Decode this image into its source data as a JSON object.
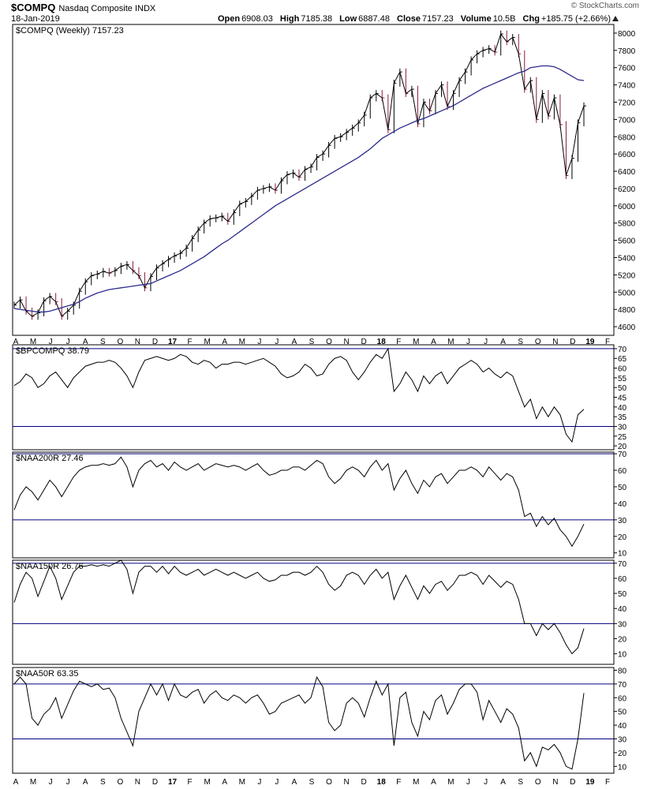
{
  "header": {
    "symbol": "$COMPQ",
    "name": "Nasdaq Composite INDX",
    "date": "18-Jan-2019",
    "credit": "© StockCharts.com",
    "quote": {
      "open_label": "Open",
      "open": "6908.03",
      "high_label": "High",
      "high": "7185.38",
      "low_label": "Low",
      "low": "6887.48",
      "close_label": "Close",
      "close": "7157.23",
      "volume_label": "Volume",
      "volume": "10.5B",
      "chg_label": "Chg",
      "chg": "+185.75 (+2.66%)"
    }
  },
  "colors": {
    "line": "#000000",
    "ma": "#2b2b8c",
    "down_bar": "#8b1a3a",
    "up_bar": "#000000",
    "grid": "#000080"
  },
  "chart_data": [
    {
      "type": "line",
      "id": "price",
      "legend": "$COMPQ (Weekly) 7157.23",
      "ylim": [
        4500,
        8100
      ],
      "yticks": [
        4600,
        4800,
        5000,
        5200,
        5400,
        5600,
        5800,
        6000,
        6200,
        6400,
        6600,
        6800,
        7000,
        7200,
        7400,
        7600,
        7800,
        8000
      ],
      "x_labels": [
        "A",
        "M",
        "J",
        "J",
        "A",
        "S",
        "O",
        "N",
        "D",
        "17",
        "F",
        "M",
        "A",
        "M",
        "J",
        "J",
        "A",
        "S",
        "O",
        "N",
        "D",
        "18",
        "F",
        "M",
        "A",
        "M",
        "J",
        "J",
        "A",
        "S",
        "O",
        "N",
        "D",
        "19",
        "F"
      ],
      "series": [
        {
          "values": [
            4850,
            4910,
            4780,
            4720,
            4760,
            4900,
            4950,
            4890,
            4720,
            4780,
            4850,
            5010,
            5120,
            5190,
            5210,
            5240,
            5220,
            5250,
            5300,
            5320,
            5250,
            5190,
            5050,
            5180,
            5280,
            5330,
            5380,
            5420,
            5450,
            5510,
            5620,
            5720,
            5800,
            5850,
            5860,
            5880,
            5820,
            5920,
            6020,
            6050,
            6110,
            6180,
            6200,
            6220,
            6180,
            6290,
            6360,
            6380,
            6330,
            6420,
            6450,
            6560,
            6600,
            6700,
            6780,
            6800,
            6850,
            6900,
            6960,
            7050,
            7250,
            7300,
            7250,
            6880,
            7420,
            7550,
            7300,
            7350,
            6950,
            7200,
            7100,
            7300,
            7400,
            7150,
            7300,
            7450,
            7550,
            7690,
            7760,
            7800,
            7820,
            7780,
            7990,
            7900,
            7950,
            7760,
            7350,
            7450,
            7000,
            7300,
            7040,
            7250,
            6940,
            6350,
            6550,
            6960,
            7157
          ]
        },
        {
          "name": "MA",
          "values": [
            4810,
            4800,
            4790,
            4780,
            4770,
            4770,
            4780,
            4800,
            4820,
            4840,
            4860,
            4890,
            4930,
            4960,
            4990,
            5010,
            5030,
            5040,
            5050,
            5060,
            5070,
            5080,
            5090,
            5100,
            5130,
            5160,
            5190,
            5220,
            5250,
            5290,
            5330,
            5370,
            5410,
            5460,
            5510,
            5560,
            5600,
            5650,
            5700,
            5750,
            5800,
            5850,
            5900,
            5950,
            6000,
            6040,
            6080,
            6120,
            6160,
            6200,
            6240,
            6280,
            6320,
            6360,
            6400,
            6440,
            6480,
            6520,
            6560,
            6610,
            6660,
            6720,
            6780,
            6820,
            6860,
            6900,
            6930,
            6960,
            6990,
            7010,
            7040,
            7070,
            7100,
            7130,
            7160,
            7200,
            7240,
            7280,
            7320,
            7360,
            7390,
            7420,
            7450,
            7480,
            7510,
            7540,
            7560,
            7600,
            7610,
            7620,
            7620,
            7610,
            7580,
            7540,
            7500,
            7460,
            7450
          ]
        }
      ]
    },
    {
      "type": "line",
      "id": "bpcompq",
      "legend": "$BPCOMPQ 38.79",
      "ylim": [
        18,
        72
      ],
      "yticks": [
        20,
        25,
        30,
        35,
        40,
        45,
        50,
        55,
        60,
        65,
        70
      ],
      "ref_lines": [
        30,
        70
      ],
      "values": [
        51,
        53,
        57,
        55,
        50,
        52,
        56,
        58,
        54,
        50,
        55,
        58,
        61,
        62,
        63,
        63,
        64,
        63,
        60,
        56,
        50,
        58,
        64,
        65,
        66,
        65,
        64,
        65,
        67,
        66,
        63,
        62,
        64,
        63,
        60,
        62,
        62,
        63,
        63,
        62,
        63,
        64,
        65,
        63,
        61,
        57,
        55,
        56,
        58,
        62,
        60,
        56,
        57,
        62,
        65,
        66,
        64,
        58,
        54,
        58,
        63,
        67,
        65,
        70,
        48,
        52,
        58,
        54,
        48,
        56,
        52,
        56,
        58,
        52,
        56,
        60,
        62,
        64,
        62,
        58,
        60,
        57,
        55,
        58,
        56,
        48,
        40,
        44,
        34,
        40,
        35,
        40,
        36,
        26,
        22,
        36,
        38.79
      ]
    },
    {
      "type": "line",
      "id": "naa200r",
      "legend": "$NAA200R 27.46",
      "ylim": [
        7,
        71
      ],
      "yticks": [
        10,
        20,
        30,
        40,
        50,
        60,
        70
      ],
      "ref_lines": [
        30,
        70
      ],
      "values": [
        36,
        45,
        50,
        47,
        42,
        48,
        54,
        50,
        44,
        50,
        56,
        60,
        62,
        63,
        63,
        64,
        63,
        64,
        68,
        62,
        50,
        60,
        64,
        66,
        62,
        64,
        60,
        65,
        62,
        60,
        62,
        64,
        60,
        62,
        64,
        63,
        62,
        63,
        62,
        60,
        62,
        64,
        60,
        57,
        58,
        60,
        60,
        62,
        62,
        60,
        63,
        66,
        64,
        56,
        52,
        55,
        60,
        62,
        60,
        56,
        62,
        66,
        60,
        64,
        48,
        55,
        60,
        52,
        46,
        54,
        50,
        56,
        58,
        52,
        56,
        60,
        60,
        62,
        60,
        56,
        62,
        58,
        54,
        58,
        56,
        48,
        32,
        34,
        26,
        32,
        27,
        31,
        24,
        20,
        14,
        20,
        27.46
      ]
    },
    {
      "type": "line",
      "id": "naa150r",
      "legend": "$NAA150R 26.76",
      "ylim": [
        3,
        72
      ],
      "yticks": [
        10,
        20,
        30,
        40,
        50,
        60,
        70
      ],
      "ref_lines": [
        30,
        70
      ],
      "values": [
        44,
        56,
        64,
        60,
        48,
        58,
        68,
        60,
        46,
        55,
        64,
        68,
        68,
        69,
        68,
        69,
        68,
        70,
        72,
        66,
        50,
        64,
        68,
        68,
        64,
        68,
        63,
        68,
        64,
        62,
        64,
        66,
        62,
        64,
        66,
        64,
        62,
        64,
        62,
        60,
        62,
        64,
        60,
        58,
        59,
        62,
        62,
        64,
        64,
        62,
        64,
        68,
        64,
        56,
        52,
        55,
        62,
        64,
        62,
        56,
        62,
        66,
        60,
        64,
        46,
        55,
        62,
        54,
        46,
        55,
        50,
        56,
        58,
        52,
        56,
        62,
        62,
        64,
        62,
        56,
        62,
        58,
        54,
        58,
        56,
        46,
        30,
        30,
        22,
        30,
        26,
        30,
        24,
        16,
        10,
        14,
        26.76
      ]
    },
    {
      "type": "line",
      "id": "naa50r",
      "legend": "$NAA50R 63.35",
      "ylim": [
        5,
        82
      ],
      "yticks": [
        10,
        20,
        30,
        40,
        50,
        60,
        70,
        80
      ],
      "ref_lines": [
        30,
        70
      ],
      "values": [
        70,
        75,
        70,
        45,
        40,
        48,
        52,
        60,
        45,
        55,
        65,
        72,
        70,
        68,
        70,
        66,
        67,
        60,
        45,
        35,
        25,
        50,
        60,
        70,
        62,
        70,
        58,
        70,
        62,
        60,
        64,
        66,
        56,
        62,
        65,
        60,
        58,
        62,
        60,
        56,
        60,
        62,
        56,
        48,
        50,
        56,
        58,
        60,
        62,
        56,
        60,
        75,
        68,
        42,
        36,
        40,
        56,
        60,
        56,
        46,
        60,
        72,
        62,
        70,
        25,
        60,
        64,
        42,
        32,
        50,
        44,
        58,
        62,
        48,
        56,
        66,
        70,
        70,
        64,
        44,
        58,
        50,
        42,
        52,
        48,
        38,
        14,
        20,
        10,
        24,
        22,
        26,
        20,
        10,
        8,
        30,
        63.35
      ]
    }
  ]
}
